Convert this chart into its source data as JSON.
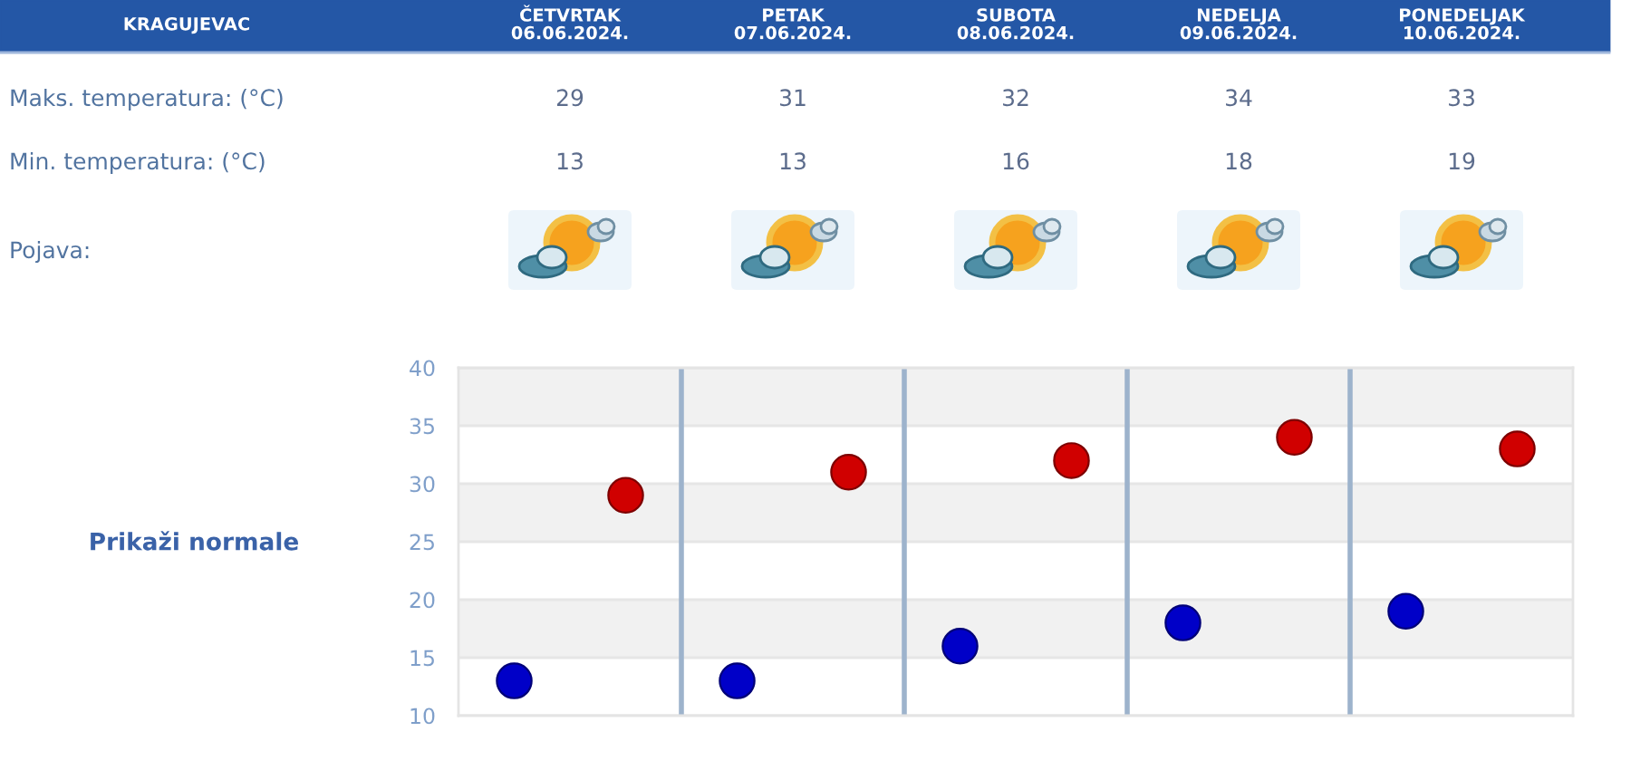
{
  "chart_data": {
    "type": "scatter",
    "title": "KRAGUJEVAC",
    "categories": [
      null,
      null,
      null,
      null,
      null
    ],
    "series": [
      {
        "color": "#d00000",
        "values": [
          29,
          31,
          32,
          34,
          33
        ]
      },
      {
        "color": "#0000c8",
        "values": [
          13,
          13,
          16,
          18,
          19
        ]
      }
    ],
    "ylim": [
      10,
      40
    ],
    "yticks": [
      10,
      15,
      20,
      25,
      30,
      35,
      40
    ],
    "grid": true,
    "marker": "circle",
    "data_labels": true,
    "annotations": [
      "ČETVRTAK\n06.06.2024.",
      "PETAK\n07.06.2024.",
      "SUBOTA\n08.06.2024.",
      "NEDELJA\n09.06.2024.",
      "PONEDELJAK\n10.06.2024.",
      "Maks. temperatura: (°C)",
      "Min. temperatura: (°C)",
      "Pojava:",
      "Prikaži normale"
    ]
  }
}
